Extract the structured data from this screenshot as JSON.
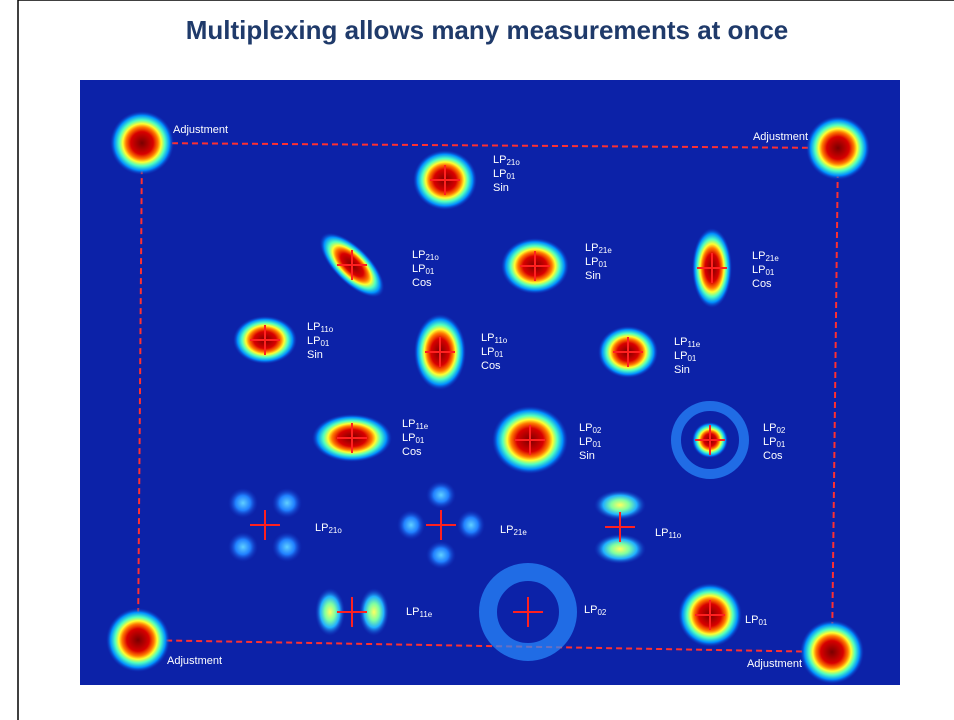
{
  "title": "Multiplexing allows many measurements at once",
  "adjustment_labels": [
    "Adjustment",
    "Adjustment",
    "Adjustment",
    "Adjustment"
  ],
  "spots": [
    {
      "lines": [
        {
          "text": "LP",
          "sub": "21o"
        },
        {
          "text": "LP",
          "sub": "01"
        },
        "Sin"
      ]
    },
    {
      "lines": [
        {
          "text": "LP",
          "sub": "21o"
        },
        {
          "text": "LP",
          "sub": "01"
        },
        "Cos"
      ]
    },
    {
      "lines": [
        {
          "text": "LP",
          "sub": "21e"
        },
        {
          "text": "LP",
          "sub": "01"
        },
        "Sin"
      ]
    },
    {
      "lines": [
        {
          "text": "LP",
          "sub": "21e"
        },
        {
          "text": "LP",
          "sub": "01"
        },
        "Cos"
      ]
    },
    {
      "lines": [
        {
          "text": "LP",
          "sub": "11o"
        },
        {
          "text": "LP",
          "sub": "01"
        },
        "Sin"
      ]
    },
    {
      "lines": [
        {
          "text": "LP",
          "sub": "11o"
        },
        {
          "text": "LP",
          "sub": "01"
        },
        "Cos"
      ]
    },
    {
      "lines": [
        {
          "text": "LP",
          "sub": "11e"
        },
        {
          "text": "LP",
          "sub": "01"
        },
        "Sin"
      ]
    },
    {
      "lines": [
        {
          "text": "LP",
          "sub": "11e"
        },
        {
          "text": "LP",
          "sub": "01"
        },
        "Cos"
      ]
    },
    {
      "lines": [
        {
          "text": "LP",
          "sub": "02"
        },
        {
          "text": "LP",
          "sub": "01"
        },
        "Sin"
      ]
    },
    {
      "lines": [
        {
          "text": "LP",
          "sub": "02"
        },
        {
          "text": "LP",
          "sub": "01"
        },
        "Cos"
      ]
    },
    {
      "lines": [
        {
          "text": "LP",
          "sub": "21o"
        }
      ]
    },
    {
      "lines": [
        {
          "text": "LP",
          "sub": "21e"
        }
      ]
    },
    {
      "lines": [
        {
          "text": "LP",
          "sub": "11o"
        }
      ]
    },
    {
      "lines": [
        {
          "text": "LP",
          "sub": "11e"
        }
      ]
    },
    {
      "lines": [
        {
          "text": "LP",
          "sub": "02"
        }
      ]
    },
    {
      "lines": [
        {
          "text": "LP",
          "sub": "01"
        }
      ]
    }
  ]
}
